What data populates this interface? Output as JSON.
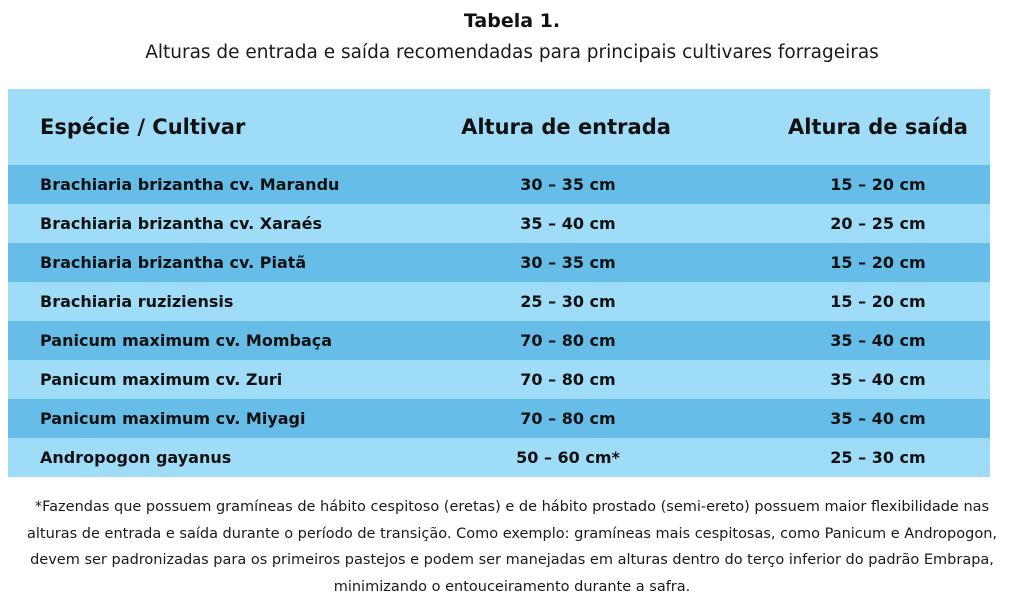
{
  "title": "Tabela 1.",
  "subtitle": "Alturas de entrada e saída recomendadas para principais cultivares forrageiras",
  "table": {
    "headers": [
      "Espécie / Cultivar",
      "Altura de entrada",
      "Altura de saída"
    ],
    "rows": [
      [
        "Brachiaria brizantha cv. Marandu",
        "30 – 35 cm",
        "15 – 20 cm"
      ],
      [
        "Brachiaria brizantha cv. Xaraés",
        "35 – 40 cm",
        "20 – 25 cm"
      ],
      [
        "Brachiaria brizantha cv.  Piatã",
        "30 – 35 cm",
        "15 – 20 cm"
      ],
      [
        "Brachiaria ruziziensis",
        "25 – 30 cm",
        "15 – 20 cm"
      ],
      [
        "Panicum maximum cv. Mombaça",
        "70 – 80 cm",
        "35 – 40 cm"
      ],
      [
        "Panicum maximum cv. Zuri",
        "70 – 80 cm",
        "35 – 40 cm"
      ],
      [
        "Panicum maximum cv. Miyagi",
        "70 – 80 cm",
        "35 – 40 cm"
      ],
      [
        "Andropogon gayanus",
        "50 – 60 cm*",
        "25 – 30 cm"
      ]
    ]
  },
  "footnote": "*Fazendas que possuem gramíneas de hábito cespitoso (eretas) e de hábito prostado (semi-ereto) possuem maior flexibilidade nas alturas de entrada e saída durante o período de transição. Como exemplo: gramíneas mais cespitosas, como Panicum e Andropogon, devem ser padronizadas para os primeiros pastejos e podem ser manejadas em alturas dentro do terço inferior do padrão Embrapa, minimizando o entouceiramento durante a safra.",
  "colors": {
    "header_bg": "#9fdcf8",
    "row_dark": "#66bde8",
    "row_light": "#9fdcf8"
  }
}
